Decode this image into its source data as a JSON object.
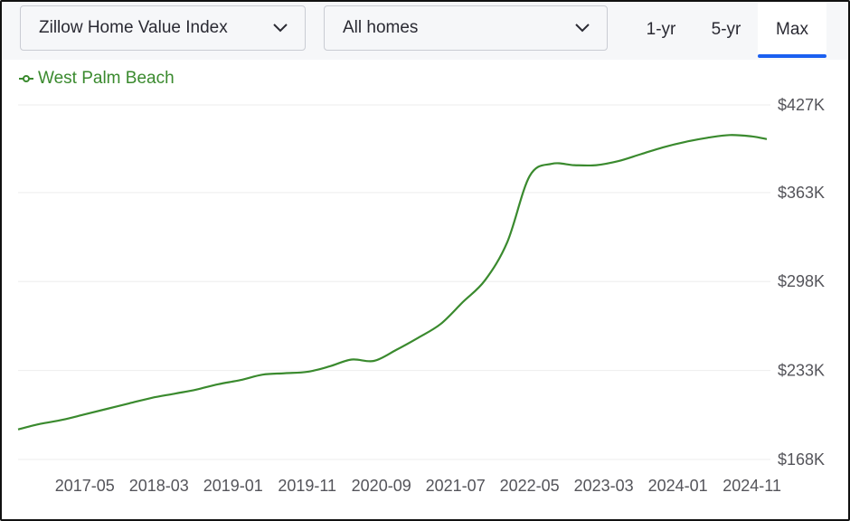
{
  "toolbar": {
    "metric_select": {
      "value": "Zillow Home Value Index",
      "icon": "chevron-down-icon"
    },
    "home_type_select": {
      "value": "All homes",
      "icon": "chevron-down-icon"
    },
    "range_tabs": [
      {
        "label": "1-yr",
        "selected": false
      },
      {
        "label": "5-yr",
        "selected": false
      },
      {
        "label": "Max",
        "selected": true
      }
    ],
    "accent_color": "#1a5ff0"
  },
  "chart_data": {
    "type": "line",
    "title": "",
    "xlabel": "",
    "ylabel": "",
    "x_ticks": [
      "2017-05",
      "2018-03",
      "2019-01",
      "2019-11",
      "2020-09",
      "2021-07",
      "2022-05",
      "2023-03",
      "2024-01",
      "2024-11"
    ],
    "y_ticks": [
      "$427K",
      "$363K",
      "$298K",
      "$233K",
      "$168K"
    ],
    "y_tick_values": [
      427,
      363,
      298,
      233,
      168
    ],
    "ylim": [
      168,
      427
    ],
    "xlim": [
      "2016-08",
      "2025-01"
    ],
    "grid": true,
    "legend_position": "top-left",
    "series": [
      {
        "name": "West Palm Beach",
        "color": "#3a8a2e",
        "x": [
          "2016-08",
          "2016-11",
          "2017-02",
          "2017-05",
          "2017-08",
          "2017-11",
          "2018-02",
          "2018-05",
          "2018-08",
          "2018-11",
          "2019-02",
          "2019-05",
          "2019-08",
          "2019-11",
          "2020-02",
          "2020-05",
          "2020-08",
          "2020-11",
          "2021-02",
          "2021-05",
          "2021-08",
          "2021-11",
          "2022-02",
          "2022-05",
          "2022-08",
          "2022-11",
          "2023-02",
          "2023-05",
          "2023-08",
          "2023-11",
          "2024-02",
          "2024-05",
          "2024-08",
          "2024-11",
          "2025-01"
        ],
        "values": [
          190,
          194,
          197,
          201,
          205,
          209,
          213,
          216,
          219,
          223,
          226,
          230,
          231,
          232,
          236,
          241,
          240,
          248,
          257,
          267,
          283,
          299,
          327,
          375,
          384,
          383,
          383,
          386,
          391,
          396,
          400,
          403,
          405,
          404,
          402
        ]
      }
    ]
  }
}
